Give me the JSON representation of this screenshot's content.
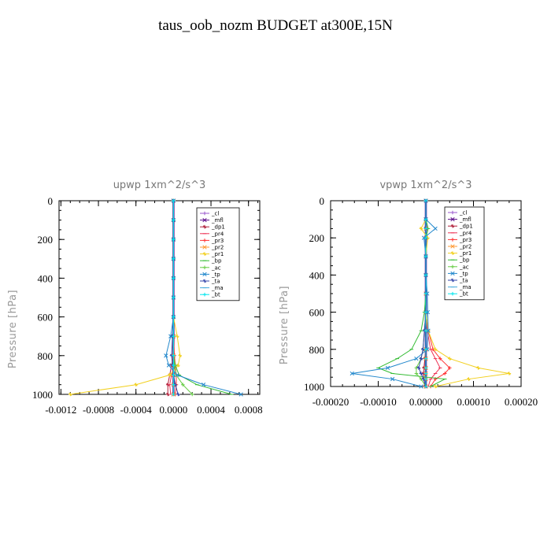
{
  "page": {
    "title": "taus_oob_nozm  BUDGET at300E,15N"
  },
  "chart_data": [
    {
      "type": "line",
      "title": "upwp   1xm^2/s^3",
      "ylabel": "Pressure [hPa]",
      "xlabel": "",
      "ylim": [
        1000,
        0
      ],
      "xlim": [
        -0.00122,
        0.00092
      ],
      "yticks": [
        0,
        200,
        400,
        600,
        800,
        1000
      ],
      "xtick_labels": [
        "-0.0012",
        "-0.0008",
        "-0.0004",
        "0.0000",
        "0.0004",
        "0.0008"
      ],
      "xtick_values": [
        -0.0012,
        -0.0008,
        -0.0004,
        0.0,
        0.0004,
        0.0008
      ],
      "legend_position": "top-right",
      "series": [
        {
          "name": "_cl",
          "color": "#9955cc",
          "x": [
            0,
            0,
            0,
            0,
            0,
            0,
            0,
            0,
            0,
            0,
            0,
            0,
            0
          ],
          "y": [
            0,
            100,
            200,
            300,
            400,
            500,
            600,
            700,
            800,
            850,
            900,
            950,
            1000
          ]
        },
        {
          "name": "_mfl",
          "color": "#5b0b8a",
          "x": [
            0,
            0,
            0,
            0,
            0,
            0,
            0,
            0,
            0,
            0,
            0,
            0,
            0
          ],
          "y": [
            0,
            100,
            200,
            300,
            400,
            500,
            600,
            700,
            800,
            850,
            900,
            950,
            1000
          ]
        },
        {
          "name": "_dp1",
          "color": "#b0203a",
          "x": [
            0,
            0,
            0,
            0,
            0,
            0,
            0,
            0,
            0,
            -2e-05,
            -4e-05,
            -6e-05,
            -6e-05
          ],
          "y": [
            0,
            100,
            200,
            300,
            400,
            500,
            600,
            700,
            800,
            850,
            900,
            950,
            1000
          ]
        },
        {
          "name": "_pr4",
          "color": "#ee3355",
          "x": [
            0,
            0,
            0,
            0,
            0,
            0,
            0,
            0,
            0,
            0,
            -2e-05,
            -4e-05,
            -3e-05
          ],
          "y": [
            0,
            100,
            200,
            300,
            400,
            500,
            600,
            700,
            800,
            850,
            900,
            950,
            1000
          ]
        },
        {
          "name": "_pr3",
          "color": "#ff3333",
          "x": [
            0,
            0,
            0,
            0,
            0,
            0,
            0,
            0,
            1e-05,
            2e-05,
            3e-05,
            3e-05,
            2e-05
          ],
          "y": [
            0,
            100,
            200,
            300,
            400,
            500,
            600,
            700,
            800,
            850,
            900,
            950,
            1000
          ]
        },
        {
          "name": "_pr2",
          "color": "#ff9933",
          "x": [
            0,
            0,
            0,
            0,
            0,
            0,
            0,
            0,
            0,
            0,
            0,
            0,
            0
          ],
          "y": [
            0,
            100,
            200,
            300,
            400,
            500,
            600,
            700,
            800,
            850,
            900,
            950,
            1000
          ]
        },
        {
          "name": "_pr1",
          "color": "#f2d020",
          "x": [
            0,
            0,
            0,
            0,
            0,
            0,
            0,
            4e-05,
            7e-05,
            5e-05,
            -4e-05,
            -0.0004,
            -0.0011
          ],
          "y": [
            0,
            100,
            200,
            300,
            400,
            500,
            600,
            700,
            800,
            850,
            900,
            950,
            1000
          ]
        },
        {
          "name": "_bp",
          "color": "#33bb33",
          "x": [
            0,
            0,
            0,
            0,
            0,
            0,
            0,
            0,
            0,
            2e-05,
            6e-05,
            0.00025,
            0.00062
          ],
          "y": [
            0,
            100,
            200,
            300,
            400,
            500,
            600,
            700,
            800,
            850,
            900,
            950,
            1000
          ]
        },
        {
          "name": "_ac",
          "color": "#66cc44",
          "x": [
            0,
            0,
            0,
            0,
            0,
            0,
            0,
            0,
            0,
            1e-05,
            3e-05,
            0.0001,
            0.0002
          ],
          "y": [
            0,
            100,
            200,
            300,
            400,
            500,
            600,
            700,
            800,
            850,
            900,
            950,
            1000
          ]
        },
        {
          "name": "_tp",
          "color": "#2288cc",
          "x": [
            0,
            0,
            0,
            0,
            0,
            0,
            0,
            -3e-05,
            -8e-05,
            -5e-05,
            4e-05,
            0.00032,
            0.00072
          ],
          "y": [
            0,
            100,
            200,
            300,
            400,
            500,
            600,
            700,
            800,
            850,
            900,
            950,
            1000
          ]
        },
        {
          "name": "_ta",
          "color": "#3344aa",
          "x": [
            0,
            0,
            0,
            0,
            0,
            0,
            0,
            -1e-05,
            -2e-05,
            -1e-05,
            0,
            2e-05,
            5e-05
          ],
          "y": [
            0,
            100,
            200,
            300,
            400,
            500,
            600,
            700,
            800,
            850,
            900,
            950,
            1000
          ]
        },
        {
          "name": "_ma",
          "color": "#44aadd",
          "x": [
            0,
            0,
            0,
            0,
            0,
            0,
            0,
            0,
            0,
            0,
            0,
            0,
            0
          ],
          "y": [
            0,
            100,
            200,
            300,
            400,
            500,
            600,
            700,
            800,
            850,
            900,
            950,
            1000
          ]
        },
        {
          "name": "_bt",
          "color": "#00e5ee",
          "x": [
            0,
            0,
            0,
            0,
            0,
            0,
            0,
            0,
            0,
            0,
            0,
            0,
            0
          ],
          "y": [
            0,
            100,
            200,
            300,
            400,
            500,
            600,
            700,
            800,
            850,
            900,
            950,
            1000
          ]
        }
      ]
    },
    {
      "type": "line",
      "title": "vpwp   1xm^2/s^3",
      "ylabel": "Pressure [hPa]",
      "xlabel": "",
      "ylim": [
        1000,
        0
      ],
      "xlim": [
        -0.0002,
        0.0002
      ],
      "yticks": [
        0,
        200,
        400,
        600,
        800,
        1000
      ],
      "xtick_labels": [
        "-0.00020",
        "-0.00010",
        "0.00000",
        "0.00010",
        "0.00020"
      ],
      "xtick_values": [
        -0.0002,
        -0.0001,
        0.0,
        0.0001,
        0.0002
      ],
      "legend_position": "top-right",
      "series": [
        {
          "name": "_cl",
          "color": "#9955cc",
          "x": [
            0,
            0,
            0,
            0,
            0,
            0,
            0,
            0,
            0,
            0,
            0,
            0,
            0,
            0,
            0
          ],
          "y": [
            0,
            100,
            150,
            200,
            300,
            400,
            500,
            600,
            700,
            800,
            850,
            900,
            930,
            960,
            1000
          ]
        },
        {
          "name": "_mfl",
          "color": "#5b0b8a",
          "x": [
            0,
            0,
            0,
            0,
            0,
            0,
            0,
            0,
            0,
            0,
            0,
            0,
            0,
            0,
            0
          ],
          "y": [
            0,
            100,
            150,
            200,
            300,
            400,
            500,
            600,
            700,
            800,
            850,
            900,
            930,
            960,
            1000
          ]
        },
        {
          "name": "_dp1",
          "color": "#b0203a",
          "x": [
            0,
            0,
            0,
            0,
            0,
            0,
            0,
            0,
            0,
            0,
            -2e-06,
            -4e-06,
            -5e-06,
            -4e-06,
            -2e-06
          ],
          "y": [
            0,
            100,
            150,
            200,
            300,
            400,
            500,
            600,
            700,
            800,
            850,
            900,
            930,
            960,
            1000
          ]
        },
        {
          "name": "_pr4",
          "color": "#ee3355",
          "x": [
            0,
            0,
            0,
            0,
            0,
            0,
            0,
            0,
            3e-06,
            1e-05,
            2e-05,
            3e-05,
            2e-05,
            1e-05,
            5e-06
          ],
          "y": [
            0,
            100,
            150,
            200,
            300,
            400,
            500,
            600,
            700,
            800,
            850,
            900,
            930,
            960,
            1000
          ]
        },
        {
          "name": "_pr3",
          "color": "#ff3333",
          "x": [
            0,
            0,
            0,
            0,
            0,
            0,
            0,
            0,
            5e-06,
            1.5e-05,
            3e-05,
            5e-05,
            4e-05,
            2e-05,
            1e-05
          ],
          "y": [
            0,
            100,
            150,
            200,
            300,
            400,
            500,
            600,
            700,
            800,
            850,
            900,
            930,
            960,
            1000
          ]
        },
        {
          "name": "_pr2",
          "color": "#ff9933",
          "x": [
            0,
            0,
            0,
            0,
            0,
            0,
            0,
            0,
            0,
            0,
            0,
            0,
            0,
            0,
            0
          ],
          "y": [
            0,
            100,
            150,
            200,
            300,
            400,
            500,
            600,
            700,
            800,
            850,
            900,
            930,
            960,
            1000
          ]
        },
        {
          "name": "_pr1",
          "color": "#f2d020",
          "x": [
            0,
            0,
            -1e-05,
            4e-06,
            0,
            0,
            0,
            0,
            5e-06,
            2e-05,
            5e-05,
            0.00011,
            0.000175,
            9e-05,
            2e-05
          ],
          "y": [
            0,
            100,
            150,
            200,
            300,
            400,
            500,
            600,
            700,
            800,
            850,
            900,
            930,
            960,
            1000
          ]
        },
        {
          "name": "_bp",
          "color": "#33bb33",
          "x": [
            0,
            0,
            5e-06,
            0,
            0,
            0,
            0,
            -3e-06,
            -1e-05,
            -3e-05,
            -6e-05,
            -0.0001,
            -7e-05,
            4e-05,
            1e-05
          ],
          "y": [
            0,
            100,
            150,
            200,
            300,
            400,
            500,
            600,
            700,
            800,
            850,
            900,
            930,
            960,
            1000
          ]
        },
        {
          "name": "_ac",
          "color": "#66cc44",
          "x": [
            0,
            0,
            0,
            0,
            0,
            0,
            0,
            0,
            -3e-06,
            -6e-06,
            -1e-05,
            -2e-05,
            -2e-05,
            -1e-05,
            0
          ],
          "y": [
            0,
            100,
            150,
            200,
            300,
            400,
            500,
            600,
            700,
            800,
            850,
            900,
            930,
            960,
            1000
          ]
        },
        {
          "name": "_tp",
          "color": "#2288cc",
          "x": [
            0,
            0,
            2e-05,
            -4e-06,
            0,
            0,
            3e-06,
            4e-06,
            5e-06,
            3e-06,
            -2e-05,
            -8e-05,
            -0.000155,
            -7e-05,
            -1e-05
          ],
          "y": [
            0,
            100,
            150,
            200,
            300,
            400,
            500,
            600,
            700,
            800,
            850,
            900,
            930,
            960,
            1000
          ]
        },
        {
          "name": "_ta",
          "color": "#3344aa",
          "x": [
            0,
            0,
            0,
            0,
            0,
            0,
            0,
            0,
            -3e-06,
            -6e-06,
            -1e-05,
            -1.5e-05,
            -1e-05,
            -5e-06,
            0
          ],
          "y": [
            0,
            100,
            150,
            200,
            300,
            400,
            500,
            600,
            700,
            800,
            850,
            900,
            930,
            960,
            1000
          ]
        },
        {
          "name": "_ma",
          "color": "#44aadd",
          "x": [
            0,
            0,
            0,
            0,
            0,
            0,
            0,
            0,
            0,
            0,
            0,
            0,
            0,
            0,
            0
          ],
          "y": [
            0,
            100,
            150,
            200,
            300,
            400,
            500,
            600,
            700,
            800,
            850,
            900,
            930,
            960,
            1000
          ]
        },
        {
          "name": "_bt",
          "color": "#00e5ee",
          "x": [
            0,
            0,
            0,
            0,
            0,
            0,
            0,
            0,
            0,
            0,
            0,
            0,
            0,
            0,
            0
          ],
          "y": [
            0,
            100,
            150,
            200,
            300,
            400,
            500,
            600,
            700,
            800,
            850,
            900,
            930,
            960,
            1000
          ]
        }
      ]
    }
  ]
}
